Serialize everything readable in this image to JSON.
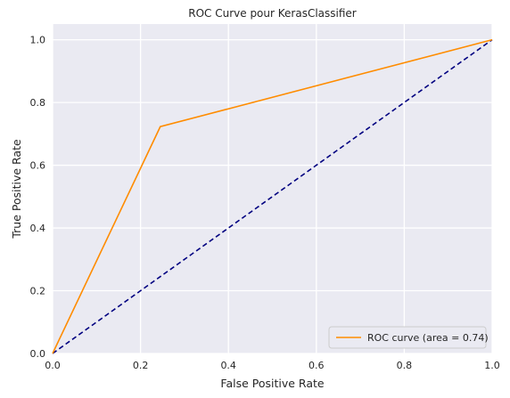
{
  "chart_data": {
    "type": "line",
    "title": "ROC Curve pour KerasClassifier",
    "xlabel": "False Positive Rate",
    "ylabel": "True Positive Rate",
    "xlim": [
      0.0,
      1.0
    ],
    "ylim": [
      0.0,
      1.05
    ],
    "x_ticks": [
      "0.0",
      "0.2",
      "0.4",
      "0.6",
      "0.8",
      "1.0"
    ],
    "y_ticks": [
      "0.0",
      "0.2",
      "0.4",
      "0.6",
      "0.8",
      "1.0"
    ],
    "grid": true,
    "legend_position": "lower-right",
    "series": [
      {
        "name": "ROC curve (area = 0.74)",
        "color": "#ff8c00",
        "style": "solid",
        "x": [
          0.0,
          0.245,
          1.0
        ],
        "y": [
          0.0,
          0.723,
          1.0
        ]
      },
      {
        "color": "#000080",
        "style": "dashed",
        "x": [
          0.0,
          1.0
        ],
        "y": [
          0.0,
          1.0
        ]
      }
    ],
    "colors": {
      "background": "#eaeaf2",
      "grid": "#ffffff"
    }
  }
}
